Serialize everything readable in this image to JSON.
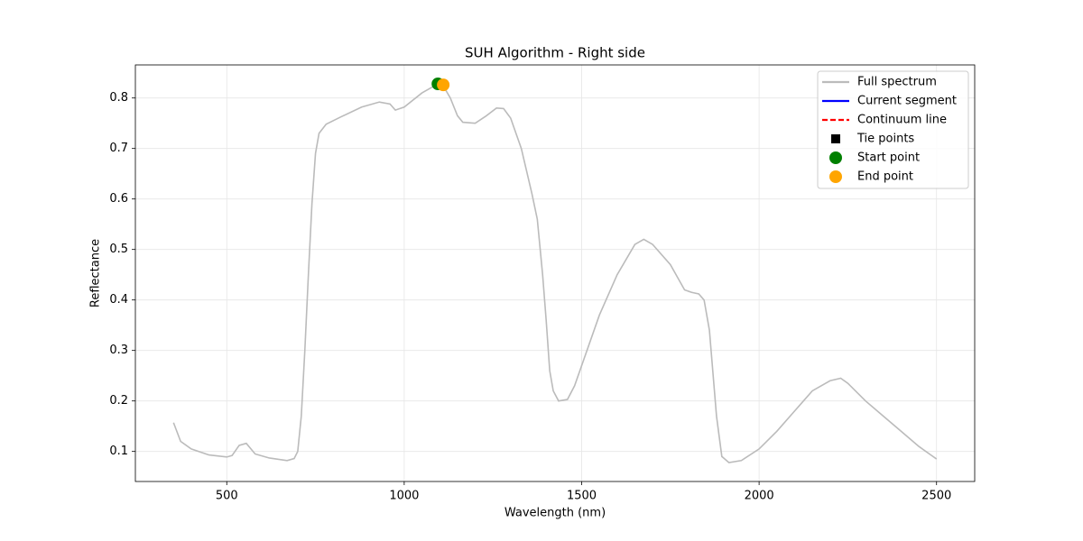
{
  "chart_data": {
    "type": "line",
    "title": "SUH Algorithm - Right side",
    "x_label": "Wavelength (nm)",
    "y_label": "Reflectance",
    "xlim": [
      242.5,
      2607.5
    ],
    "ylim": [
      0.0405,
      0.8655
    ],
    "xticks": [
      500,
      1000,
      1500,
      2000,
      2500
    ],
    "yticks": [
      0.1,
      0.2,
      0.3,
      0.4,
      0.5,
      0.6,
      0.7,
      0.8
    ],
    "grid": true,
    "legend": "upper right",
    "series": [
      {
        "name": "Full spectrum",
        "color": "#bbbbbb",
        "style": "line",
        "x": [
          350,
          370,
          400,
          450,
          500,
          515,
          535,
          555,
          580,
          620,
          670,
          690,
          700,
          710,
          720,
          730,
          740,
          750,
          760,
          780,
          820,
          880,
          930,
          960,
          975,
          1000,
          1050,
          1080,
          1100,
          1110,
          1130,
          1150,
          1165,
          1200,
          1230,
          1260,
          1280,
          1300,
          1330,
          1360,
          1375,
          1390,
          1400,
          1410,
          1420,
          1435,
          1460,
          1480,
          1500,
          1550,
          1600,
          1650,
          1675,
          1700,
          1750,
          1790,
          1810,
          1830,
          1845,
          1860,
          1880,
          1895,
          1915,
          1950,
          2000,
          2050,
          2100,
          2150,
          2200,
          2230,
          2250,
          2300,
          2350,
          2400,
          2450,
          2480,
          2500
        ],
        "values": [
          0.157,
          0.12,
          0.105,
          0.093,
          0.089,
          0.092,
          0.112,
          0.116,
          0.095,
          0.087,
          0.082,
          0.086,
          0.1,
          0.17,
          0.3,
          0.45,
          0.59,
          0.69,
          0.73,
          0.748,
          0.762,
          0.782,
          0.792,
          0.788,
          0.776,
          0.782,
          0.81,
          0.822,
          0.826,
          0.824,
          0.8,
          0.765,
          0.752,
          0.75,
          0.764,
          0.78,
          0.779,
          0.76,
          0.7,
          0.61,
          0.56,
          0.45,
          0.36,
          0.26,
          0.22,
          0.2,
          0.203,
          0.23,
          0.27,
          0.37,
          0.45,
          0.51,
          0.52,
          0.51,
          0.47,
          0.42,
          0.415,
          0.412,
          0.4,
          0.34,
          0.17,
          0.09,
          0.078,
          0.082,
          0.105,
          0.14,
          0.18,
          0.22,
          0.24,
          0.245,
          0.235,
          0.2,
          0.17,
          0.14,
          0.11,
          0.095,
          0.085
        ]
      },
      {
        "name": "Current segment",
        "color": "#0000ff",
        "style": "line"
      },
      {
        "name": "Continuum line",
        "color": "#ff0000",
        "style": "dashed"
      },
      {
        "name": "Tie points",
        "color": "#000000",
        "style": "square"
      },
      {
        "name": "Start point",
        "color": "#008000",
        "style": "circle",
        "x": [
          1095
        ],
        "values": [
          0.828
        ]
      },
      {
        "name": "End point",
        "color": "#ffa500",
        "style": "circle",
        "x": [
          1110
        ],
        "values": [
          0.826
        ]
      }
    ]
  }
}
